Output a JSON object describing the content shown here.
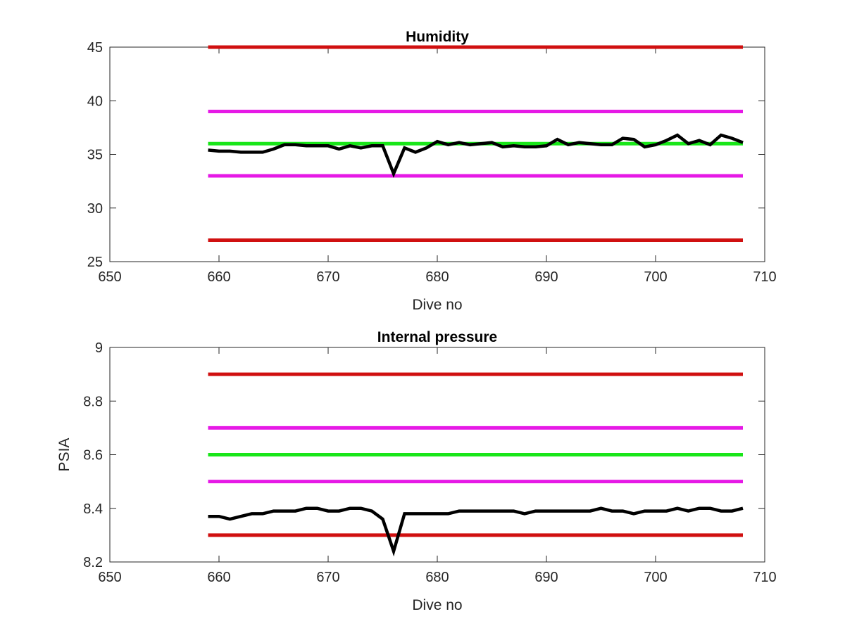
{
  "chart_data": [
    {
      "type": "line",
      "title": "Humidity",
      "xlabel": "Dive no",
      "ylabel": "",
      "xlim": [
        650,
        710
      ],
      "ylim": [
        25,
        45
      ],
      "xticks": [
        650,
        660,
        670,
        680,
        690,
        700,
        710
      ],
      "yticks": [
        25,
        30,
        35,
        40,
        45
      ],
      "grid": false,
      "series": [
        {
          "color": "#d01010",
          "x": [
            659,
            708
          ],
          "y": [
            45,
            45
          ]
        },
        {
          "color": "#e619e6",
          "x": [
            659,
            708
          ],
          "y": [
            39,
            39
          ]
        },
        {
          "color": "#19e619",
          "x": [
            659,
            708
          ],
          "y": [
            36,
            36
          ]
        },
        {
          "color": "#e619e6",
          "x": [
            659,
            708
          ],
          "y": [
            33,
            33
          ]
        },
        {
          "color": "#d01010",
          "x": [
            659,
            708
          ],
          "y": [
            27,
            27
          ]
        },
        {
          "color": "#000000",
          "x": [
            659,
            660,
            661,
            662,
            663,
            664,
            665,
            666,
            667,
            668,
            669,
            670,
            671,
            672,
            673,
            674,
            675,
            676,
            677,
            678,
            679,
            680,
            681,
            682,
            683,
            684,
            685,
            686,
            687,
            688,
            689,
            690,
            691,
            692,
            693,
            694,
            695,
            696,
            697,
            698,
            699,
            700,
            701,
            702,
            703,
            704,
            705,
            706,
            707,
            708
          ],
          "y": [
            35.4,
            35.3,
            35.3,
            35.2,
            35.2,
            35.2,
            35.5,
            35.9,
            35.9,
            35.8,
            35.8,
            35.8,
            35.5,
            35.8,
            35.6,
            35.8,
            35.8,
            33.2,
            35.6,
            35.2,
            35.6,
            36.2,
            35.9,
            36.1,
            35.9,
            36.0,
            36.1,
            35.7,
            35.8,
            35.7,
            35.7,
            35.8,
            36.4,
            35.9,
            36.1,
            36.0,
            35.9,
            35.9,
            36.5,
            36.4,
            35.7,
            35.9,
            36.3,
            36.8,
            36.0,
            36.3,
            35.9,
            36.8,
            36.5,
            36.1
          ]
        }
      ]
    },
    {
      "type": "line",
      "title": "Internal pressure",
      "xlabel": "Dive no",
      "ylabel": "PSIA",
      "xlim": [
        650,
        710
      ],
      "ylim": [
        8.2,
        9.0
      ],
      "xticks": [
        650,
        660,
        670,
        680,
        690,
        700,
        710
      ],
      "yticks": [
        8.2,
        8.4,
        8.6,
        8.8,
        9.0
      ],
      "ytick_labels": [
        "8.2",
        "8.4",
        "8.6",
        "8.8",
        "9"
      ],
      "grid": false,
      "series": [
        {
          "color": "#d01010",
          "x": [
            659,
            708
          ],
          "y": [
            8.9,
            8.9
          ]
        },
        {
          "color": "#e619e6",
          "x": [
            659,
            708
          ],
          "y": [
            8.7,
            8.7
          ]
        },
        {
          "color": "#19e619",
          "x": [
            659,
            708
          ],
          "y": [
            8.6,
            8.6
          ]
        },
        {
          "color": "#e619e6",
          "x": [
            659,
            708
          ],
          "y": [
            8.5,
            8.5
          ]
        },
        {
          "color": "#d01010",
          "x": [
            659,
            708
          ],
          "y": [
            8.3,
            8.3
          ]
        },
        {
          "color": "#000000",
          "x": [
            659,
            660,
            661,
            662,
            663,
            664,
            665,
            666,
            667,
            668,
            669,
            670,
            671,
            672,
            673,
            674,
            675,
            676,
            677,
            678,
            679,
            680,
            681,
            682,
            683,
            684,
            685,
            686,
            687,
            688,
            689,
            690,
            691,
            692,
            693,
            694,
            695,
            696,
            697,
            698,
            699,
            700,
            701,
            702,
            703,
            704,
            705,
            706,
            707,
            708
          ],
          "y": [
            8.37,
            8.37,
            8.36,
            8.37,
            8.38,
            8.38,
            8.39,
            8.39,
            8.39,
            8.4,
            8.4,
            8.39,
            8.39,
            8.4,
            8.4,
            8.39,
            8.36,
            8.24,
            8.38,
            8.38,
            8.38,
            8.38,
            8.38,
            8.39,
            8.39,
            8.39,
            8.39,
            8.39,
            8.39,
            8.38,
            8.39,
            8.39,
            8.39,
            8.39,
            8.39,
            8.39,
            8.4,
            8.39,
            8.39,
            8.38,
            8.39,
            8.39,
            8.39,
            8.4,
            8.39,
            8.4,
            8.4,
            8.39,
            8.39,
            8.4
          ]
        }
      ]
    }
  ]
}
